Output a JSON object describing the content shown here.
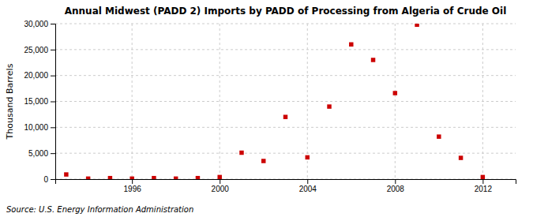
{
  "chart_data": {
    "type": "scatter",
    "title": "Annual Midwest (PADD 2) Imports by PADD of Processing from Algeria of Crude Oil",
    "ylabel": "Thousand Barrels",
    "annotations": [
      "Source: U.S. Energy Information Administration"
    ],
    "x": [
      1993,
      1994,
      1995,
      1996,
      1997,
      1998,
      1999,
      2000,
      2001,
      2002,
      2003,
      2004,
      2005,
      2006,
      2007,
      2008,
      2009,
      2010,
      2011,
      2012
    ],
    "values": [
      900,
      100,
      200,
      100,
      200,
      100,
      200,
      400,
      5100,
      3500,
      12000,
      4200,
      14000,
      26000,
      23000,
      16600,
      29800,
      8200,
      4100,
      400
    ],
    "color": "#cc0000",
    "marker": "square",
    "xlim": [
      1992.5,
      2013.5
    ],
    "xticks": [
      1996,
      2000,
      2004,
      2008,
      2012
    ],
    "ylim": [
      0,
      30000
    ],
    "yticks": [
      0,
      {
        "value": 5000,
        "label": "5,000"
      },
      {
        "value": 10000,
        "label": "10,000"
      },
      {
        "value": 15000,
        "label": "15,000"
      },
      {
        "value": 20000,
        "label": "20,000"
      },
      {
        "value": 25000,
        "label": "25,000"
      },
      {
        "value": 30000,
        "label": "30,000"
      }
    ],
    "grid": true
  }
}
